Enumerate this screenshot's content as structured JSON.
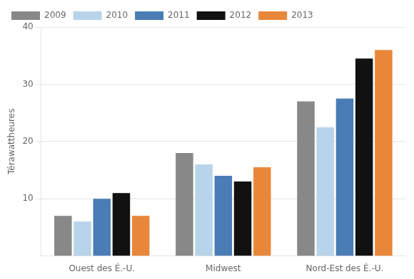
{
  "chart_data": {
    "type": "bar",
    "categories": [
      "Ouest des É.-U.",
      "Midwest",
      "Nord-Est des É.-U."
    ],
    "series": [
      {
        "name": "2009",
        "color": "#888888",
        "values": [
          7.0,
          18.0,
          27.0
        ]
      },
      {
        "name": "2010",
        "color": "#b8d4ea",
        "values": [
          6.0,
          16.0,
          22.5
        ]
      },
      {
        "name": "2011",
        "color": "#4a7db5",
        "values": [
          10.0,
          14.0,
          27.5
        ]
      },
      {
        "name": "2012",
        "color": "#111111",
        "values": [
          11.0,
          13.0,
          34.5
        ]
      },
      {
        "name": "2013",
        "color": "#e8873a",
        "values": [
          7.0,
          15.5,
          36.0
        ]
      }
    ],
    "ylabel": "Térawattheures",
    "ylim": [
      0,
      40
    ],
    "yticks": [
      10,
      20,
      30,
      40
    ],
    "grid": true,
    "legend": "upper left"
  }
}
